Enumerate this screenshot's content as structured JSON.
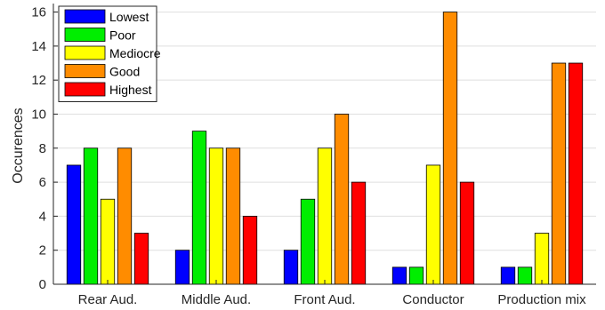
{
  "chart_data": {
    "type": "bar",
    "title": "",
    "xlabel": "",
    "ylabel": "Occurences",
    "ylim": [
      0,
      16.5
    ],
    "yticks": [
      0,
      2,
      4,
      6,
      8,
      10,
      12,
      14,
      16
    ],
    "grid": "horizontal",
    "legend_position": "top-left",
    "categories": [
      "Rear Aud.",
      "Middle Aud.",
      "Front Aud.",
      "Conductor",
      "Production mix"
    ],
    "series": [
      {
        "name": "Lowest",
        "color": "#0000ff",
        "values": [
          7,
          2,
          2,
          1,
          1
        ]
      },
      {
        "name": "Poor",
        "color": "#00ee00",
        "values": [
          8,
          9,
          5,
          1,
          1
        ]
      },
      {
        "name": "Mediocre",
        "color": "#ffff00",
        "values": [
          5,
          8,
          8,
          7,
          3
        ]
      },
      {
        "name": "Good",
        "color": "#ff8c00",
        "values": [
          8,
          8,
          10,
          16,
          13
        ]
      },
      {
        "name": "Highest",
        "color": "#ff0000",
        "values": [
          3,
          4,
          6,
          6,
          13
        ]
      }
    ]
  }
}
